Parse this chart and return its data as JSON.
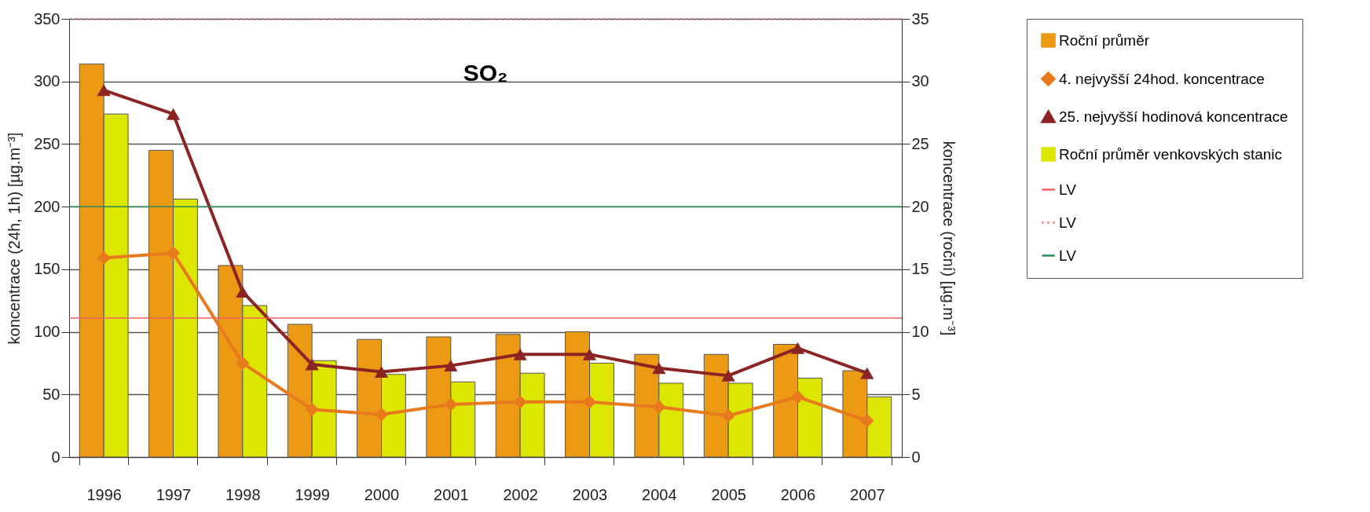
{
  "chart_data": {
    "type": "bar",
    "title": "SO₂",
    "ylabel": "koncentrace (24h, 1h) [µg.m⁻³]",
    "y2label": "koncentrace (roční) [µg.m⁻³]",
    "categories": [
      "1996",
      "1997",
      "1998",
      "1999",
      "2000",
      "2001",
      "2002",
      "2003",
      "2004",
      "2005",
      "2006",
      "2007"
    ],
    "series": [
      {
        "name": "Roční průměr",
        "axis": "y2",
        "color": "#ec9a13",
        "values": [
          31.4,
          24.5,
          15.3,
          10.6,
          9.4,
          9.6,
          9.8,
          10.0,
          8.2,
          8.2,
          9.0,
          6.9
        ]
      },
      {
        "name": "4. nejvyšší 24hod. koncentrace",
        "type": "line",
        "marker": "diamond",
        "color": "#e87a1e",
        "values": [
          159,
          163,
          75,
          38,
          34,
          42,
          44,
          44,
          40,
          33,
          48,
          29
        ]
      },
      {
        "name": "25. nejvyšší hodinová koncentrace",
        "type": "line",
        "marker": "triangle",
        "color": "#8b2424",
        "values": [
          293,
          274,
          132,
          74,
          68,
          73,
          82,
          82,
          71,
          65,
          87,
          67
        ]
      },
      {
        "name": "Roční průměr venkovských stanic",
        "axis": "y2",
        "color": "#dde600",
        "values": [
          27.4,
          20.6,
          12.1,
          7.7,
          6.6,
          6.0,
          6.7,
          7.5,
          5.9,
          5.9,
          6.3,
          4.8
        ]
      }
    ],
    "ref_lines": [
      {
        "axis": "y",
        "value": 111,
        "label": "LV",
        "color": "#f06060",
        "line_style": "solid"
      },
      {
        "axis": "y",
        "value": 350,
        "label": "LV",
        "color": "#f06060",
        "line_style": "dotted"
      },
      {
        "axis": "y",
        "value": 200,
        "label": "LV",
        "color": "#2e8b57",
        "line_style": "solid"
      }
    ],
    "ylim": [
      0,
      350
    ],
    "yticks": [
      0,
      50,
      100,
      150,
      200,
      250,
      300,
      350
    ],
    "y2lim": [
      0,
      35
    ],
    "y2ticks": [
      0,
      5,
      10,
      15,
      20,
      25,
      30,
      35
    ],
    "grid": "y",
    "legend": "right"
  }
}
